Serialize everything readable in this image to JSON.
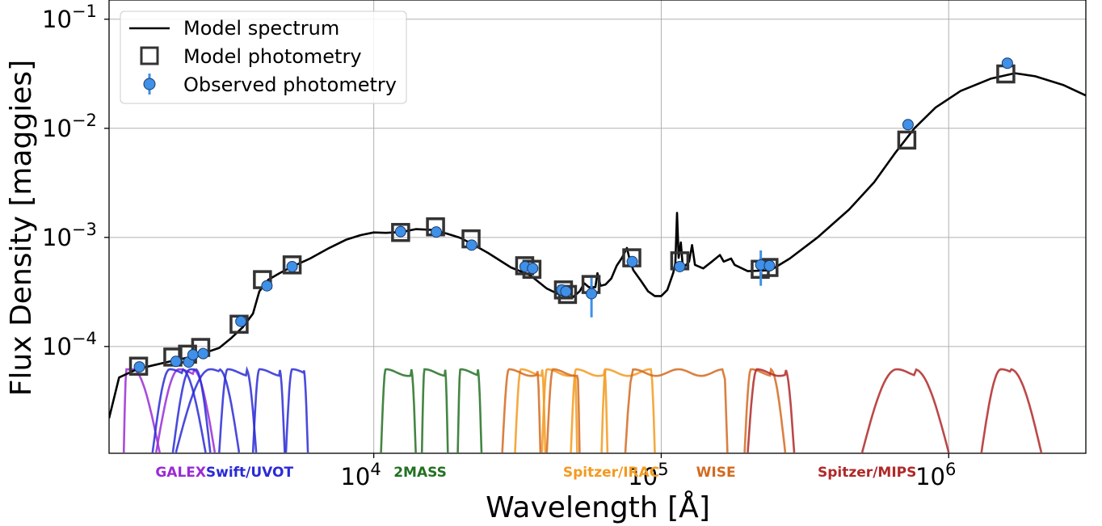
{
  "chart_data": {
    "type": "line",
    "xlabel": "Wavelength [Å]",
    "ylabel": "Flux Density [maggies]",
    "xscale": "log",
    "yscale": "log",
    "xlim": [
      1200,
      3000000
    ],
    "ylim": [
      1.05e-05,
      0.15
    ],
    "grid": true,
    "legend_placement": "top-left",
    "x_ticks": [
      {
        "value": 10000,
        "base": "10",
        "exp": "4"
      },
      {
        "value": 100000,
        "base": "10",
        "exp": "5"
      },
      {
        "value": 1000000,
        "base": "10",
        "exp": "6"
      }
    ],
    "y_ticks": [
      {
        "value": 0.0001,
        "base": "10",
        "exp": "−4"
      },
      {
        "value": 0.001,
        "base": "10",
        "exp": "−3"
      },
      {
        "value": 0.01,
        "base": "10",
        "exp": "−2"
      },
      {
        "value": 0.1,
        "base": "10",
        "exp": "−1"
      }
    ],
    "legend": [
      {
        "label": "Model spectrum",
        "marker": "line"
      },
      {
        "label": "Model photometry",
        "marker": "square"
      },
      {
        "label": "Observed photometry",
        "marker": "circle-errorbar"
      }
    ],
    "colors": {
      "model_spectrum": "#000000",
      "model_photometry": "#333333",
      "observed_photometry": "#3f90e8",
      "errorbar": "#3f90e8"
    },
    "model_spectrum": {
      "name": "Model spectrum",
      "points": [
        [
          1200,
          2.2e-05
        ],
        [
          1300,
          5.2e-05
        ],
        [
          1500,
          6.2e-05
        ],
        [
          1700,
          6.7e-05
        ],
        [
          2000,
          7.4e-05
        ],
        [
          2300,
          8e-05
        ],
        [
          2600,
          8.8e-05
        ],
        [
          2900,
          9.7e-05
        ],
        [
          3200,
          0.00012
        ],
        [
          3500,
          0.00015
        ],
        [
          3800,
          0.0002
        ],
        [
          4000,
          0.00032
        ],
        [
          4300,
          0.00041
        ],
        [
          4700,
          0.00047
        ],
        [
          5200,
          0.00054
        ],
        [
          6000,
          0.00064
        ],
        [
          7000,
          0.0008
        ],
        [
          8000,
          0.00095
        ],
        [
          9000,
          0.00105
        ],
        [
          10000,
          0.00111
        ],
        [
          11000,
          0.0011
        ],
        [
          12500,
          0.00112
        ],
        [
          14000,
          0.00119
        ],
        [
          16000,
          0.00117
        ],
        [
          18000,
          0.00108
        ],
        [
          20000,
          0.00099
        ],
        [
          22000,
          0.00087
        ],
        [
          25000,
          0.00072
        ],
        [
          30000,
          0.00053
        ],
        [
          35000,
          0.00045
        ],
        [
          40000,
          0.00034
        ],
        [
          43000,
          0.00031
        ],
        [
          46000,
          0.00029
        ],
        [
          49000,
          0.00028
        ],
        [
          52000,
          0.00032
        ],
        [
          54000,
          0.00038
        ],
        [
          56000,
          0.00035
        ],
        [
          59000,
          0.00035
        ],
        [
          60000,
          0.00047
        ],
        [
          61500,
          0.00036
        ],
        [
          64000,
          0.00037
        ],
        [
          67000,
          0.00042
        ],
        [
          70000,
          0.00055
        ],
        [
          73000,
          0.00065
        ],
        [
          76000,
          0.0008
        ],
        [
          78000,
          0.0006
        ],
        [
          80000,
          0.0005
        ],
        [
          85000,
          0.0004
        ],
        [
          90000,
          0.00032
        ],
        [
          95000,
          0.00029
        ],
        [
          100000,
          0.00029
        ],
        [
          105000,
          0.00033
        ],
        [
          110000,
          0.00047
        ],
        [
          112000,
          0.00058
        ],
        [
          113500,
          0.00168
        ],
        [
          115000,
          0.00065
        ],
        [
          117000,
          0.0009
        ],
        [
          119000,
          0.00052
        ],
        [
          125000,
          0.0006
        ],
        [
          128000,
          0.00085
        ],
        [
          131000,
          0.00056
        ],
        [
          140000,
          0.00052
        ],
        [
          150000,
          0.0006
        ],
        [
          160000,
          0.00069
        ],
        [
          165000,
          0.0006
        ],
        [
          175000,
          0.00064
        ],
        [
          180000,
          0.00056
        ],
        [
          200000,
          0.00049
        ],
        [
          240000,
          0.0005
        ],
        [
          280000,
          0.00064
        ],
        [
          350000,
          0.001
        ],
        [
          450000,
          0.0018
        ],
        [
          550000,
          0.0032
        ],
        [
          650000,
          0.0059
        ],
        [
          760000,
          0.01
        ],
        [
          900000,
          0.0155
        ],
        [
          1100000,
          0.022
        ],
        [
          1400000,
          0.0285
        ],
        [
          1700000,
          0.032
        ],
        [
          2000000,
          0.03
        ],
        [
          2500000,
          0.025
        ],
        [
          3000000,
          0.02
        ]
      ]
    },
    "model_photometry": {
      "name": "Model photometry",
      "points": [
        [
          1520,
          6.6e-05
        ],
        [
          2000,
          8e-05
        ],
        [
          2250,
          8.5e-05
        ],
        [
          2500,
          9.8e-05
        ],
        [
          3400,
          0.00016
        ],
        [
          4100,
          0.00041
        ],
        [
          5200,
          0.00056
        ],
        [
          12400,
          0.00111
        ],
        [
          16400,
          0.00125
        ],
        [
          21800,
          0.00097
        ],
        [
          33500,
          0.00055
        ],
        [
          35500,
          0.00051
        ],
        [
          45700,
          0.00033
        ],
        [
          47200,
          0.0003
        ],
        [
          57000,
          0.00037
        ],
        [
          79000,
          0.00065
        ],
        [
          116000,
          0.00061
        ],
        [
          221000,
          0.00051
        ],
        [
          237000,
          0.00053
        ],
        [
          715000,
          0.0078
        ],
        [
          1580000,
          0.0315
        ]
      ]
    },
    "observed_photometry": {
      "name": "Observed photometry",
      "points": [
        [
          1530,
          6.5e-05,
          0
        ],
        [
          2050,
          7.3e-05,
          0
        ],
        [
          2270,
          7.2e-05,
          0
        ],
        [
          2350,
          8.4e-05,
          0
        ],
        [
          2550,
          8.6e-05,
          0
        ],
        [
          3450,
          0.00017,
          0
        ],
        [
          4250,
          0.00036,
          0
        ],
        [
          5200,
          0.00054,
          0
        ],
        [
          12400,
          0.00113,
          0
        ],
        [
          16500,
          0.00112,
          0
        ],
        [
          21900,
          0.00085,
          0
        ],
        [
          33600,
          0.00054,
          0
        ],
        [
          35700,
          0.00052,
          0
        ],
        [
          45100,
          0.00033,
          0
        ],
        [
          46600,
          0.00032,
          0
        ],
        [
          57200,
          0.000305,
          0.00012
        ],
        [
          79300,
          0.0006,
          0
        ],
        [
          116000,
          0.00054,
          0
        ],
        [
          222000,
          0.00056,
          0.0002
        ],
        [
          238000,
          0.00055,
          0
        ],
        [
          722000,
          0.0108,
          0
        ],
        [
          1600000,
          0.0395,
          0
        ]
      ]
    },
    "filter_groups": [
      {
        "label": "GALEX",
        "color": "#9a2bd6",
        "label_x": 2130,
        "curves": [
          {
            "lo": 1350,
            "hi": 1800,
            "p0": 1380,
            "p1": 1450
          },
          {
            "lo": 1750,
            "hi": 2800,
            "p0": 2100,
            "p1": 2350
          }
        ]
      },
      {
        "label": "Swift/UVOT",
        "color": "#2a2ad6",
        "label_x": 3700,
        "curves": [
          {
            "lo": 1700,
            "hi": 2600,
            "p0": 1950,
            "p1": 2150
          },
          {
            "lo": 2000,
            "hi": 2700,
            "p0": 2300,
            "p1": 2400
          },
          {
            "lo": 2050,
            "hi": 3400,
            "p0": 2700,
            "p1": 2900
          },
          {
            "lo": 2900,
            "hi": 3900,
            "p0": 3100,
            "p1": 3600
          },
          {
            "lo": 3800,
            "hi": 4900,
            "p0": 4000,
            "p1": 4700
          },
          {
            "lo": 4950,
            "hi": 5900,
            "p0": 5200,
            "p1": 5700
          }
        ]
      },
      {
        "label": "2MASS",
        "color": "#237023",
        "label_x": 14500,
        "curves": [
          {
            "lo": 10600,
            "hi": 14000,
            "p0": 11000,
            "p1": 13500
          },
          {
            "lo": 14700,
            "hi": 18100,
            "p0": 15000,
            "p1": 17700
          },
          {
            "lo": 19600,
            "hi": 23700,
            "p0": 20000,
            "p1": 23000
          }
        ]
      },
      {
        "label": "Spitzer/IRAC",
        "color": "#f39a1f",
        "label_x": 67000,
        "curves": [
          {
            "lo": 31000,
            "hi": 39500,
            "p0": 32500,
            "p1": 38500
          },
          {
            "lo": 38500,
            "hi": 51000,
            "p0": 40000,
            "p1": 50000
          },
          {
            "lo": 48500,
            "hi": 65000,
            "p0": 50500,
            "p1": 63500
          },
          {
            "lo": 62000,
            "hi": 95000,
            "p0": 64000,
            "p1": 92000
          }
        ]
      },
      {
        "label": "WISE",
        "color": "#d36a20",
        "label_x": 155000,
        "curves": [
          {
            "lo": 28000,
            "hi": 38000,
            "p0": 29500,
            "p1": 37000
          },
          {
            "lo": 40000,
            "hi": 52000,
            "p0": 42000,
            "p1": 51000
          },
          {
            "lo": 75000,
            "hi": 170000,
            "p0": 80000,
            "p1": 165000
          },
          {
            "lo": 195000,
            "hi": 270000,
            "p0": 205000,
            "p1": 240000
          }
        ]
      },
      {
        "label": "Spitzer/MIPS",
        "color": "#b02828",
        "label_x": 520000,
        "curves": [
          {
            "lo": 200000,
            "hi": 290000,
            "p0": 215000,
            "p1": 270000
          },
          {
            "lo": 500000,
            "hi": 1000000,
            "p0": 660000,
            "p1": 760000
          },
          {
            "lo": 1300000,
            "hi": 2100000,
            "p0": 1520000,
            "p1": 1640000
          }
        ]
      }
    ]
  }
}
